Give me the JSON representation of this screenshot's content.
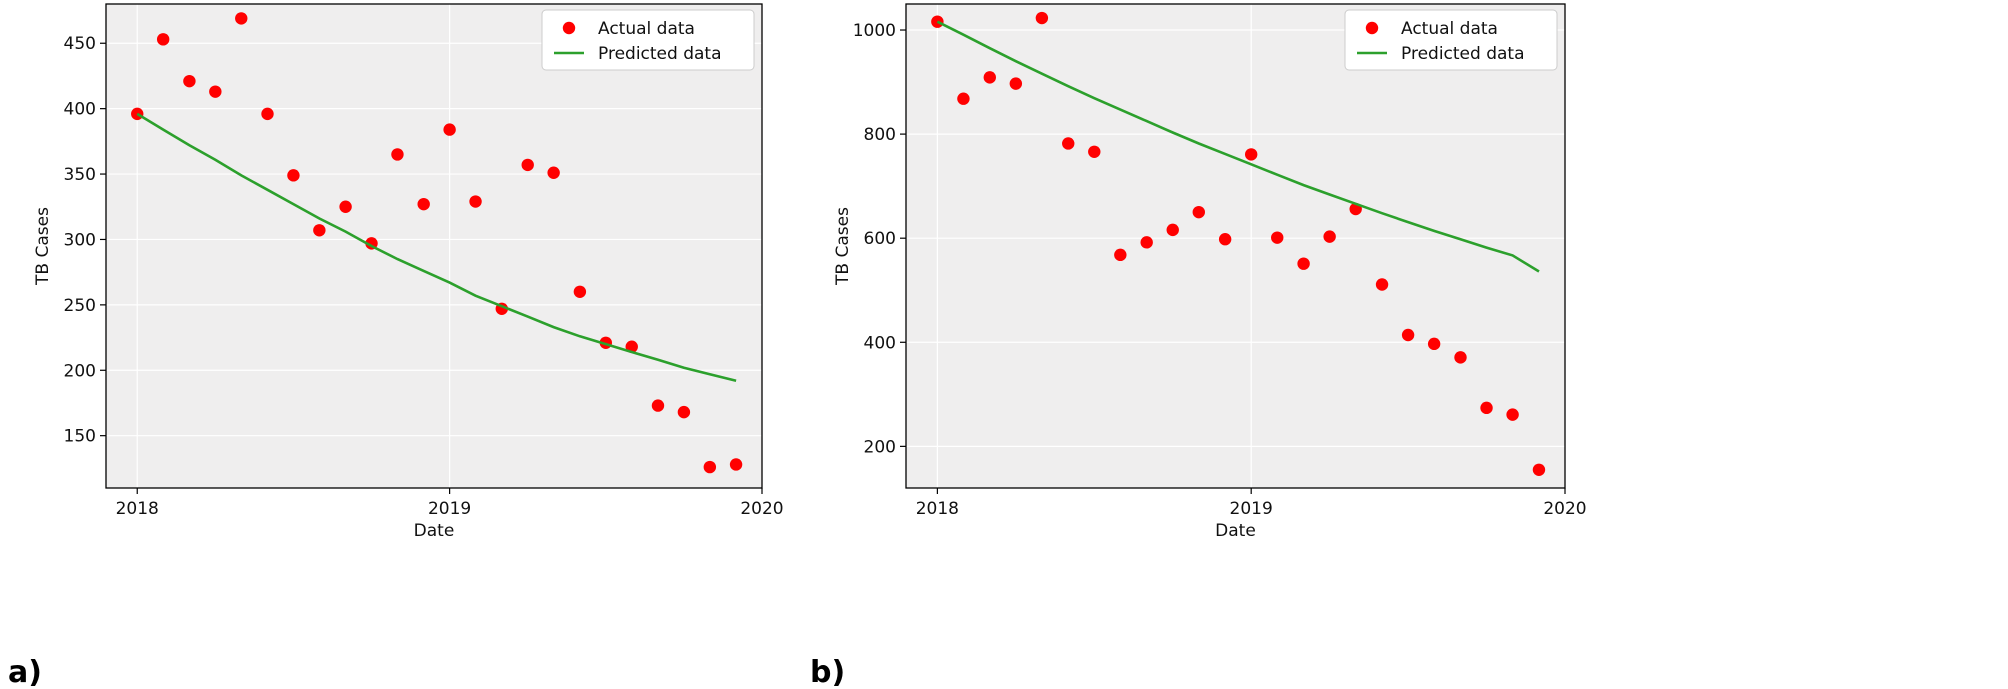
{
  "chart_data": [
    {
      "type": "scatter+line",
      "panel_label": "a)",
      "title": "",
      "xlabel": "Date",
      "ylabel": "TB Cases",
      "xlim": [
        2017.9,
        2020.0
      ],
      "ylim": [
        110,
        480
      ],
      "xticks": [
        {
          "value": 2018,
          "label": "2018"
        },
        {
          "value": 2019,
          "label": "2019"
        },
        {
          "value": 2020,
          "label": "2020"
        }
      ],
      "yticks": [
        {
          "value": 150,
          "label": "150"
        },
        {
          "value": 200,
          "label": "200"
        },
        {
          "value": 250,
          "label": "250"
        },
        {
          "value": 300,
          "label": "300"
        },
        {
          "value": 350,
          "label": "350"
        },
        {
          "value": 400,
          "label": "400"
        },
        {
          "value": 450,
          "label": "450"
        }
      ],
      "grid": true,
      "legend_position": "top-right",
      "series": [
        {
          "name": "Actual data",
          "kind": "scatter",
          "color": "#ff0000",
          "x": [
            2018.0,
            2018.083,
            2018.167,
            2018.25,
            2018.333,
            2018.417,
            2018.5,
            2018.583,
            2018.667,
            2018.75,
            2018.833,
            2018.917,
            2019.0,
            2019.083,
            2019.167,
            2019.25,
            2019.333,
            2019.417,
            2019.5,
            2019.583,
            2019.667,
            2019.75,
            2019.833,
            2019.917
          ],
          "y": [
            396,
            453,
            421,
            413,
            469,
            396,
            349,
            307,
            325,
            297,
            365,
            327,
            384,
            329,
            247,
            357,
            351,
            260,
            221,
            218,
            173,
            168,
            126,
            128
          ]
        },
        {
          "name": "Predicted data",
          "kind": "line",
          "color": "#2ca02c",
          "x": [
            2018.0,
            2018.083,
            2018.167,
            2018.25,
            2018.333,
            2018.417,
            2018.5,
            2018.583,
            2018.667,
            2018.75,
            2018.833,
            2018.917,
            2019.0,
            2019.083,
            2019.167,
            2019.25,
            2019.333,
            2019.417,
            2019.5,
            2019.583,
            2019.667,
            2019.75,
            2019.833,
            2019.917
          ],
          "y": [
            396,
            384,
            372,
            361,
            349,
            338,
            327,
            316,
            306,
            295,
            285,
            276,
            267,
            257,
            249,
            241,
            233,
            226,
            220,
            214,
            208,
            202,
            197,
            192
          ]
        }
      ]
    },
    {
      "type": "scatter+line",
      "panel_label": "b)",
      "title": "",
      "xlabel": "Date",
      "ylabel": "TB Cases",
      "xlim": [
        2017.9,
        2020.0
      ],
      "ylim": [
        120,
        1050
      ],
      "xticks": [
        {
          "value": 2018,
          "label": "2018"
        },
        {
          "value": 2019,
          "label": "2019"
        },
        {
          "value": 2020,
          "label": "2020"
        }
      ],
      "yticks": [
        {
          "value": 200,
          "label": "200"
        },
        {
          "value": 400,
          "label": "400"
        },
        {
          "value": 600,
          "label": "600"
        },
        {
          "value": 800,
          "label": "800"
        },
        {
          "value": 1000,
          "label": "1000"
        }
      ],
      "grid": true,
      "legend_position": "top-right",
      "series": [
        {
          "name": "Actual data",
          "kind": "scatter",
          "color": "#ff0000",
          "x": [
            2018.0,
            2018.083,
            2018.167,
            2018.25,
            2018.333,
            2018.417,
            2018.5,
            2018.583,
            2018.667,
            2018.75,
            2018.833,
            2018.917,
            2019.0,
            2019.083,
            2019.167,
            2019.25,
            2019.333,
            2019.417,
            2019.5,
            2019.583,
            2019.667,
            2019.75,
            2019.833,
            2019.917
          ],
          "y": [
            1016,
            868,
            909,
            897,
            1023,
            782,
            766,
            568,
            592,
            616,
            650,
            598,
            761,
            601,
            551,
            603,
            656,
            511,
            414,
            397,
            371,
            274,
            261,
            155
          ]
        },
        {
          "name": "Predicted data",
          "kind": "line",
          "color": "#2ca02c",
          "x": [
            2018.0,
            2018.083,
            2018.167,
            2018.25,
            2018.333,
            2018.417,
            2018.5,
            2018.583,
            2018.667,
            2018.75,
            2018.833,
            2018.917,
            2019.0,
            2019.083,
            2019.167,
            2019.25,
            2019.333,
            2019.417,
            2019.5,
            2019.583,
            2019.667,
            2019.75,
            2019.833,
            2019.917
          ],
          "y": [
            1016,
            991,
            965,
            940,
            916,
            892,
            869,
            847,
            825,
            803,
            782,
            762,
            742,
            722,
            702,
            684,
            666,
            648,
            631,
            614,
            598,
            582,
            567,
            536
          ]
        }
      ]
    }
  ]
}
